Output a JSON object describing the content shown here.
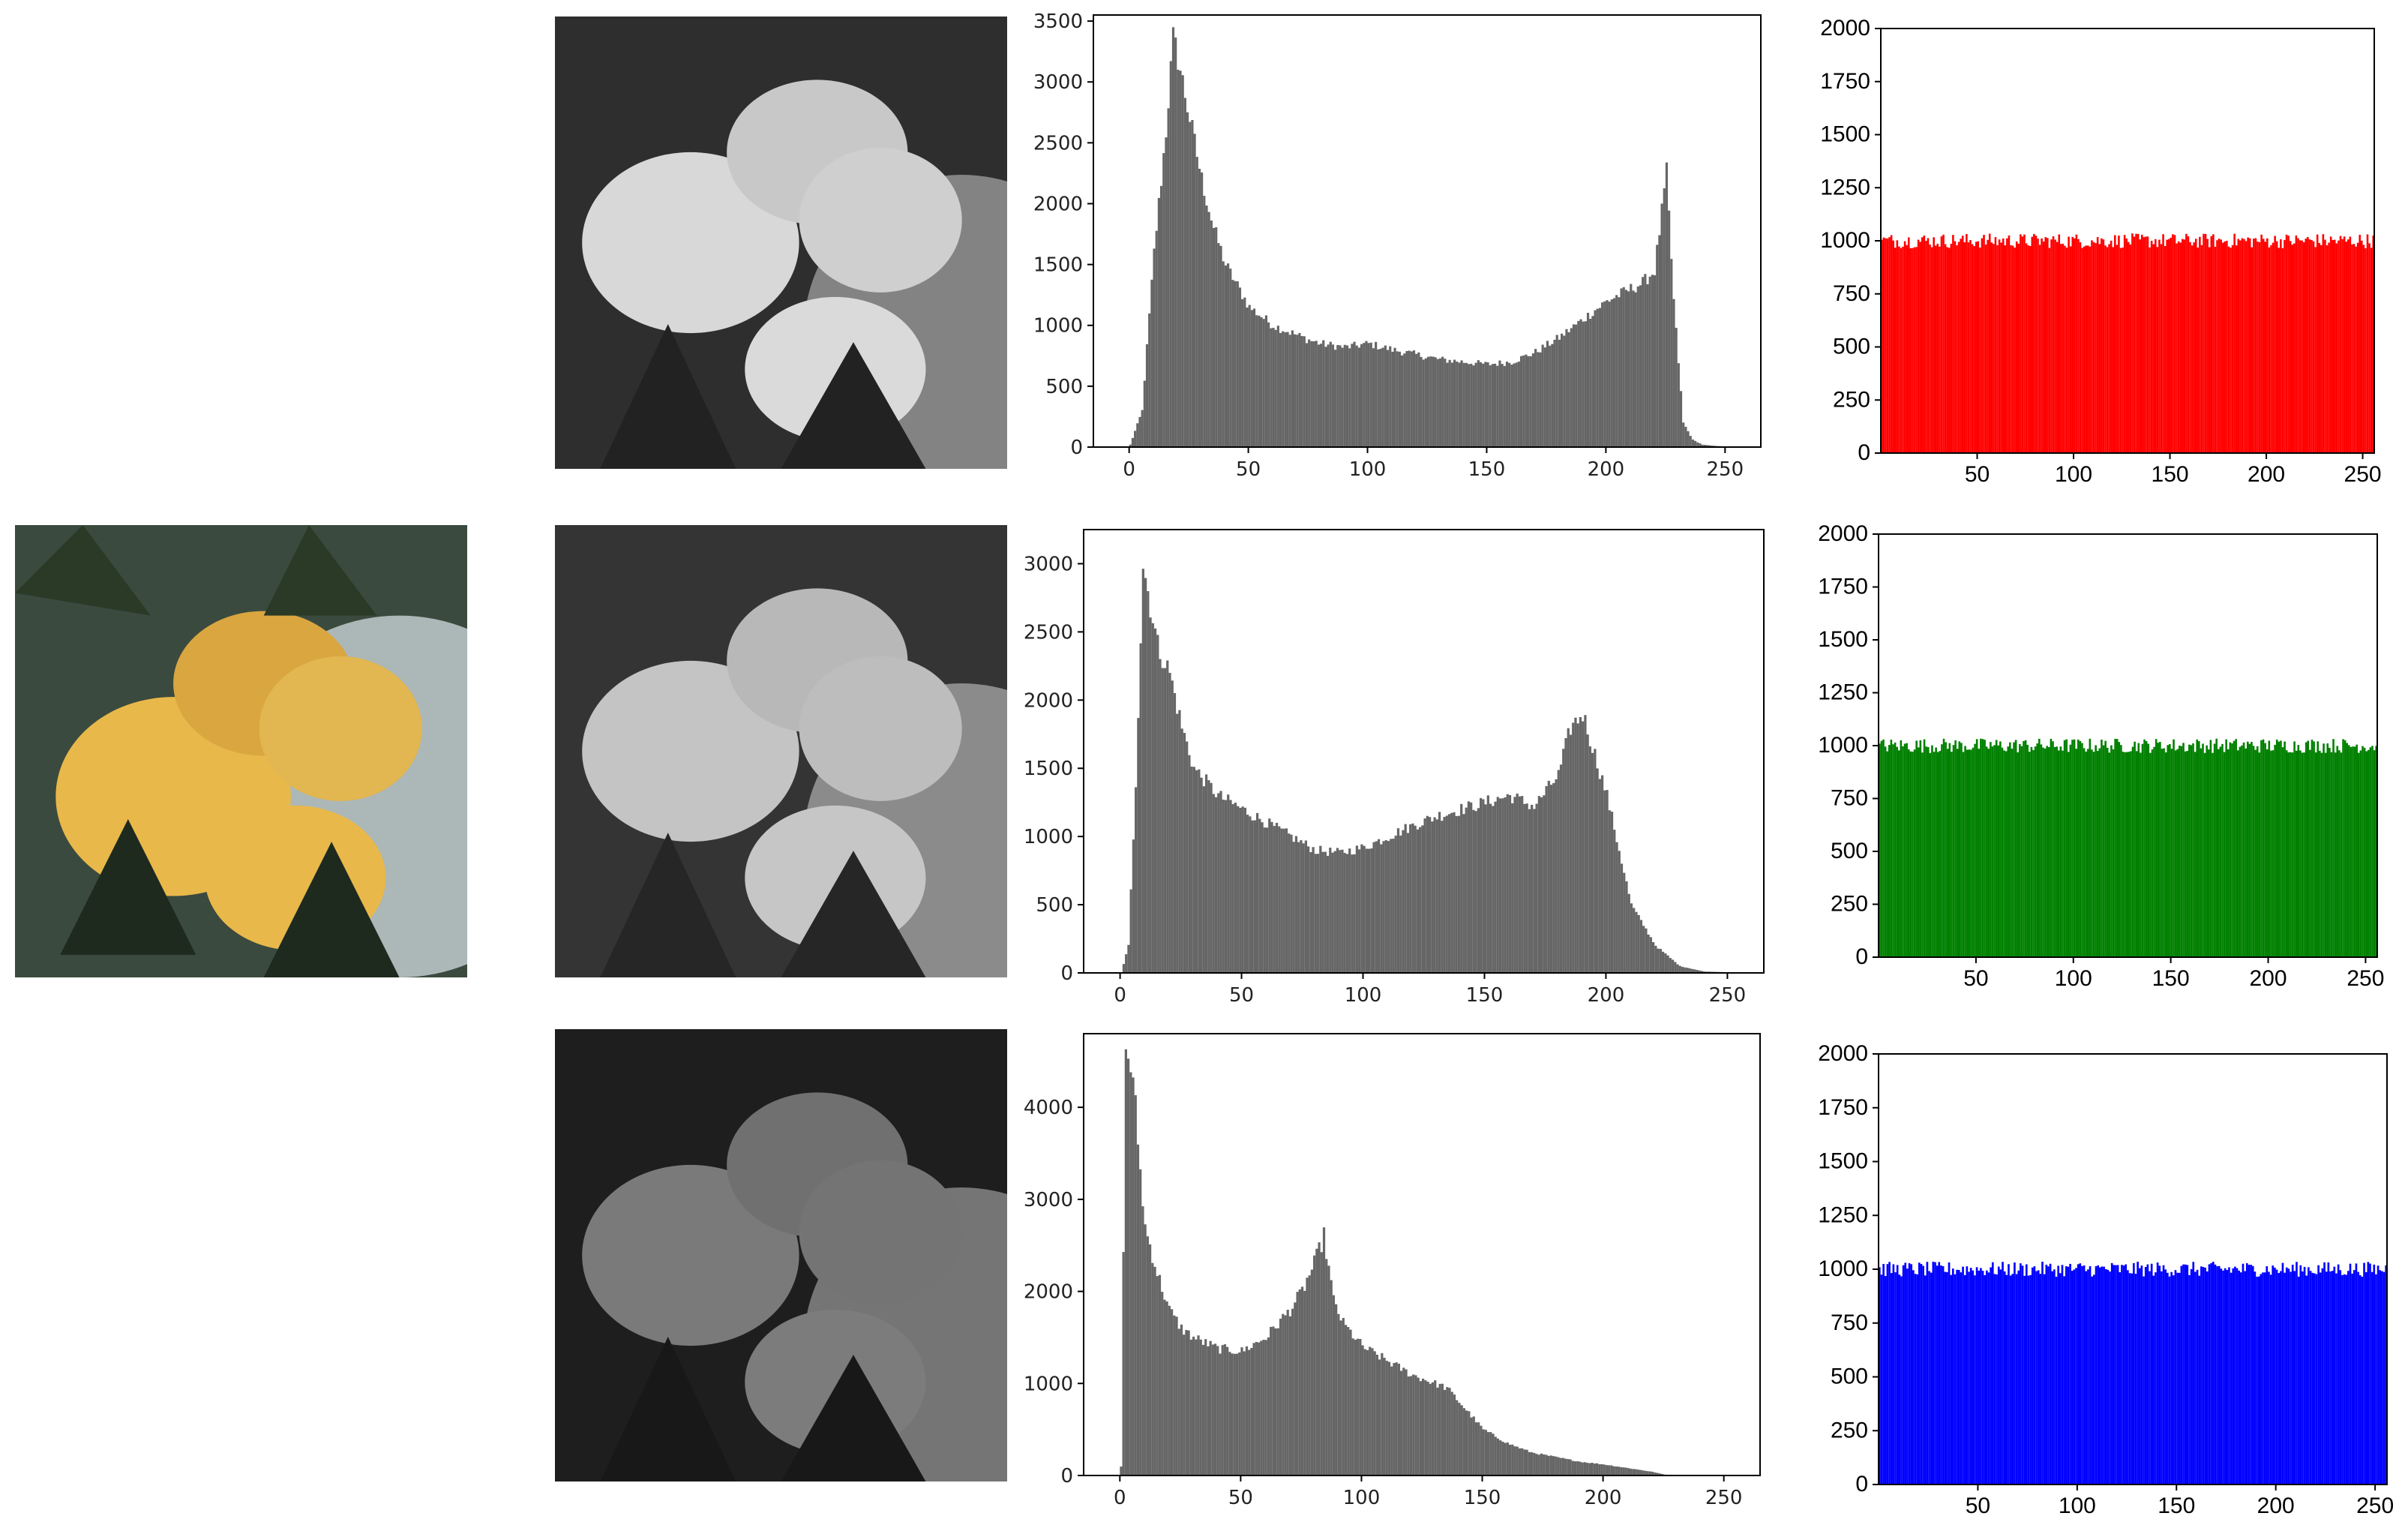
{
  "photos": {
    "color_photo": "pineapple-color-photo",
    "channel_photos": [
      "pineapple-red-channel-grayscale",
      "pineapple-green-channel-grayscale",
      "pineapple-blue-channel-grayscale"
    ]
  },
  "colors": {
    "gray_bars": "#666666",
    "red": "#ff0000",
    "green": "#008000",
    "blue": "#0000ff",
    "pineapple_yellow": "#e8b84a",
    "leaf_dark": "#2b3322"
  },
  "chart_data": [
    {
      "type": "bar",
      "name": "red-channel-histogram",
      "xlim": [
        -15,
        265
      ],
      "ylim": [
        0,
        3550
      ],
      "xticks": [
        0,
        50,
        100,
        150,
        200,
        250
      ],
      "yticks": [
        0,
        500,
        1000,
        1500,
        2000,
        2500,
        3000,
        3500
      ],
      "x": [
        0,
        5,
        10,
        15,
        18,
        20,
        25,
        30,
        35,
        40,
        50,
        60,
        70,
        75,
        80,
        90,
        100,
        110,
        120,
        130,
        140,
        150,
        160,
        170,
        180,
        190,
        200,
        210,
        215,
        220,
        225,
        228,
        232,
        236,
        240,
        245,
        250,
        255
      ],
      "y": [
        20,
        300,
        1600,
        2600,
        3350,
        3200,
        2700,
        2200,
        1800,
        1500,
        1150,
        1000,
        920,
        880,
        850,
        820,
        850,
        800,
        760,
        720,
        700,
        680,
        700,
        780,
        900,
        1050,
        1200,
        1300,
        1350,
        1450,
        2250,
        1200,
        200,
        60,
        20,
        10,
        5,
        0
      ]
    },
    {
      "type": "bar",
      "name": "green-channel-histogram",
      "xlim": [
        -15,
        265
      ],
      "ylim": [
        0,
        3250
      ],
      "xticks": [
        0,
        50,
        100,
        150,
        200,
        250
      ],
      "yticks": [
        0,
        500,
        1000,
        1500,
        2000,
        2500,
        3000
      ],
      "x": [
        0,
        3,
        6,
        9,
        12,
        15,
        20,
        25,
        30,
        40,
        50,
        60,
        70,
        80,
        90,
        100,
        110,
        120,
        130,
        140,
        150,
        160,
        170,
        180,
        185,
        190,
        195,
        200,
        205,
        210,
        220,
        230,
        240,
        250,
        255
      ],
      "y": [
        0,
        200,
        1400,
        3000,
        2700,
        2400,
        2200,
        1800,
        1500,
        1300,
        1200,
        1100,
        1000,
        900,
        880,
        920,
        1000,
        1080,
        1150,
        1200,
        1250,
        1300,
        1220,
        1450,
        1800,
        1900,
        1600,
        1300,
        900,
        500,
        200,
        50,
        10,
        5,
        0
      ]
    },
    {
      "type": "bar",
      "name": "blue-channel-histogram",
      "xlim": [
        -15,
        265
      ],
      "ylim": [
        0,
        4800
      ],
      "xticks": [
        0,
        50,
        100,
        150,
        200,
        250
      ],
      "yticks": [
        0,
        1000,
        2000,
        3000,
        4000
      ],
      "x": [
        0,
        2,
        4,
        6,
        8,
        10,
        15,
        20,
        25,
        30,
        40,
        50,
        60,
        70,
        75,
        80,
        84,
        88,
        92,
        100,
        110,
        120,
        130,
        135,
        140,
        150,
        160,
        170,
        180,
        190,
        200,
        210,
        220,
        225,
        230,
        240,
        250,
        255
      ],
      "y": [
        100,
        4650,
        4450,
        4000,
        3300,
        2700,
        2200,
        1800,
        1600,
        1500,
        1380,
        1350,
        1500,
        1800,
        2000,
        2300,
        2600,
        1900,
        1650,
        1400,
        1250,
        1100,
        1000,
        950,
        800,
        500,
        350,
        250,
        200,
        150,
        120,
        80,
        40,
        10,
        0,
        0,
        0,
        0
      ]
    },
    {
      "type": "bar",
      "name": "red-uniform-histogram",
      "xlim": [
        0,
        256
      ],
      "ylim": [
        0,
        2000
      ],
      "xticks": [
        50,
        100,
        150,
        200,
        250
      ],
      "yticks": [
        0,
        250,
        500,
        750,
        1000,
        1250,
        1500,
        1750,
        2000
      ],
      "approx_value": 1000,
      "jitter": 70
    },
    {
      "type": "bar",
      "name": "green-uniform-histogram",
      "xlim": [
        0,
        256
      ],
      "ylim": [
        0,
        2000
      ],
      "xticks": [
        50,
        100,
        150,
        200,
        250
      ],
      "yticks": [
        0,
        250,
        500,
        750,
        1000,
        1250,
        1500,
        1750,
        2000
      ],
      "approx_value": 1000,
      "jitter": 70
    },
    {
      "type": "bar",
      "name": "blue-uniform-histogram",
      "xlim": [
        0,
        256
      ],
      "ylim": [
        0,
        2000
      ],
      "xticks": [
        50,
        100,
        150,
        200,
        250
      ],
      "yticks": [
        0,
        250,
        500,
        750,
        1000,
        1250,
        1500,
        1750,
        2000
      ],
      "approx_value": 1000,
      "jitter": 70
    }
  ]
}
